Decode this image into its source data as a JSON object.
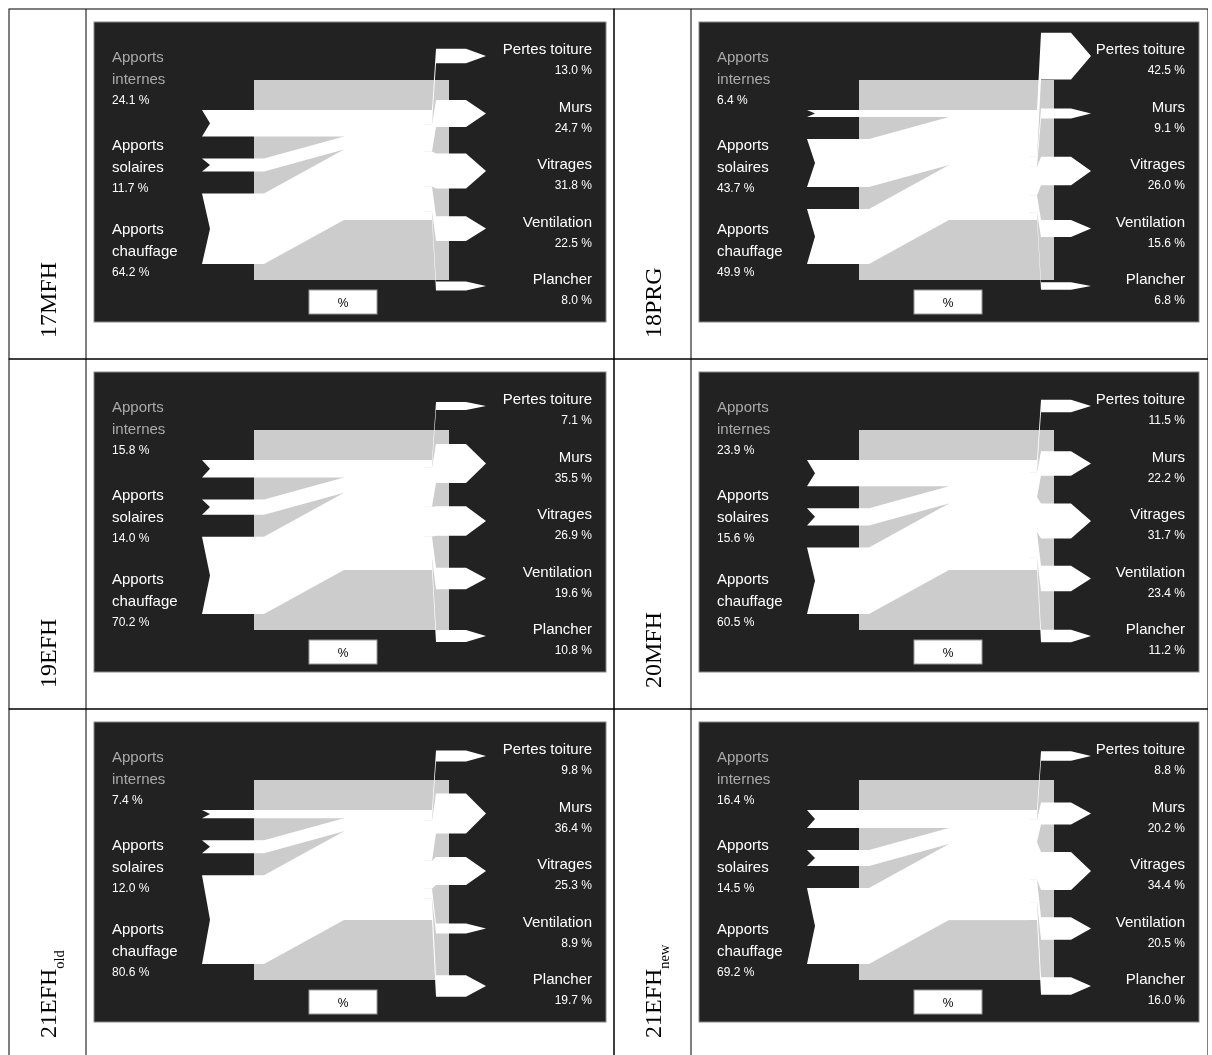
{
  "chart_data": [
    {
      "type": "other",
      "title": "17MFH",
      "categories": [
        "Apports internes",
        "Apports solaires",
        "Apports chauffage",
        "Pertes toiture",
        "Murs",
        "Vitrages",
        "Ventilation",
        "Plancher"
      ],
      "values": [
        24.1,
        11.7,
        64.2,
        13.0,
        24.7,
        31.8,
        22.5,
        8.0
      ],
      "value_labels": [
        "24.1 %",
        "11.7 %",
        "64.2 %",
        "13.0 %",
        "24.7 %",
        "31.8 %",
        "22.5 %",
        "8.0 %"
      ],
      "annotations": [
        "%"
      ]
    },
    {
      "type": "other",
      "title": "18PRG",
      "categories": [
        "Apports internes",
        "Apports solaires",
        "Apports chauffage",
        "Pertes toiture",
        "Murs",
        "Vitrages",
        "Ventilation",
        "Plancher"
      ],
      "values": [
        6.4,
        43.7,
        49.9,
        42.5,
        9.1,
        26.0,
        15.6,
        6.8
      ],
      "value_labels": [
        "6.4 %",
        "43.7 %",
        "49.9 %",
        "42.5 %",
        "9.1 %",
        "26.0 %",
        "15.6 %",
        "6.8 %"
      ],
      "annotations": [
        "%"
      ]
    },
    {
      "type": "other",
      "title": "19EFH",
      "categories": [
        "Apports internes",
        "Apports solaires",
        "Apports chauffage",
        "Pertes toiture",
        "Murs",
        "Vitrages",
        "Ventilation",
        "Plancher"
      ],
      "values": [
        15.8,
        14.0,
        70.2,
        7.1,
        35.5,
        26.9,
        19.6,
        10.8
      ],
      "value_labels": [
        "15.8 %",
        "14.0 %",
        "70.2 %",
        "7.1 %",
        "35.5 %",
        "26.9 %",
        "19.6 %",
        "10.8 %"
      ],
      "annotations": [
        "%"
      ]
    },
    {
      "type": "other",
      "title": "20MFH",
      "categories": [
        "Apports internes",
        "Apports solaires",
        "Apports chauffage",
        "Pertes toiture",
        "Murs",
        "Vitrages",
        "Ventilation",
        "Plancher"
      ],
      "values": [
        23.9,
        15.6,
        60.5,
        11.5,
        22.2,
        31.7,
        23.4,
        11.2
      ],
      "value_labels": [
        "23.9 %",
        "15.6 %",
        "60.5 %",
        "11.5 %",
        "22.2 %",
        "31.7 %",
        "23.4 %",
        "11.2 %"
      ],
      "annotations": [
        "%"
      ]
    },
    {
      "type": "other",
      "title": "21EFH$_{old}$",
      "categories": [
        "Apports internes",
        "Apports solaires",
        "Apports chauffage",
        "Pertes toiture",
        "Murs",
        "Vitrages",
        "Ventilation",
        "Plancher"
      ],
      "values": [
        7.4,
        12.0,
        80.6,
        9.8,
        36.4,
        25.3,
        8.9,
        19.7
      ],
      "value_labels": [
        "7.4 %",
        "12.0 %",
        "80.6 %",
        "9.8 %",
        "36.4 %",
        "25.3 %",
        "8.9 %",
        "19.7 %"
      ],
      "annotations": [
        "%"
      ]
    },
    {
      "type": "other",
      "title": "21EFH$_{new}$",
      "categories": [
        "Apports internes",
        "Apports solaires",
        "Apports chauffage",
        "Pertes toiture",
        "Murs",
        "Vitrages",
        "Ventilation",
        "Plancher"
      ],
      "values": [
        16.4,
        14.5,
        69.2,
        8.8,
        20.2,
        34.4,
        20.5,
        16.0
      ],
      "value_labels": [
        "16.4 %",
        "14.5 %",
        "69.2 %",
        "8.8 %",
        "20.2 %",
        "34.4 %",
        "20.5 %",
        "16.0 %"
      ],
      "annotations": [
        "%"
      ]
    }
  ]
}
